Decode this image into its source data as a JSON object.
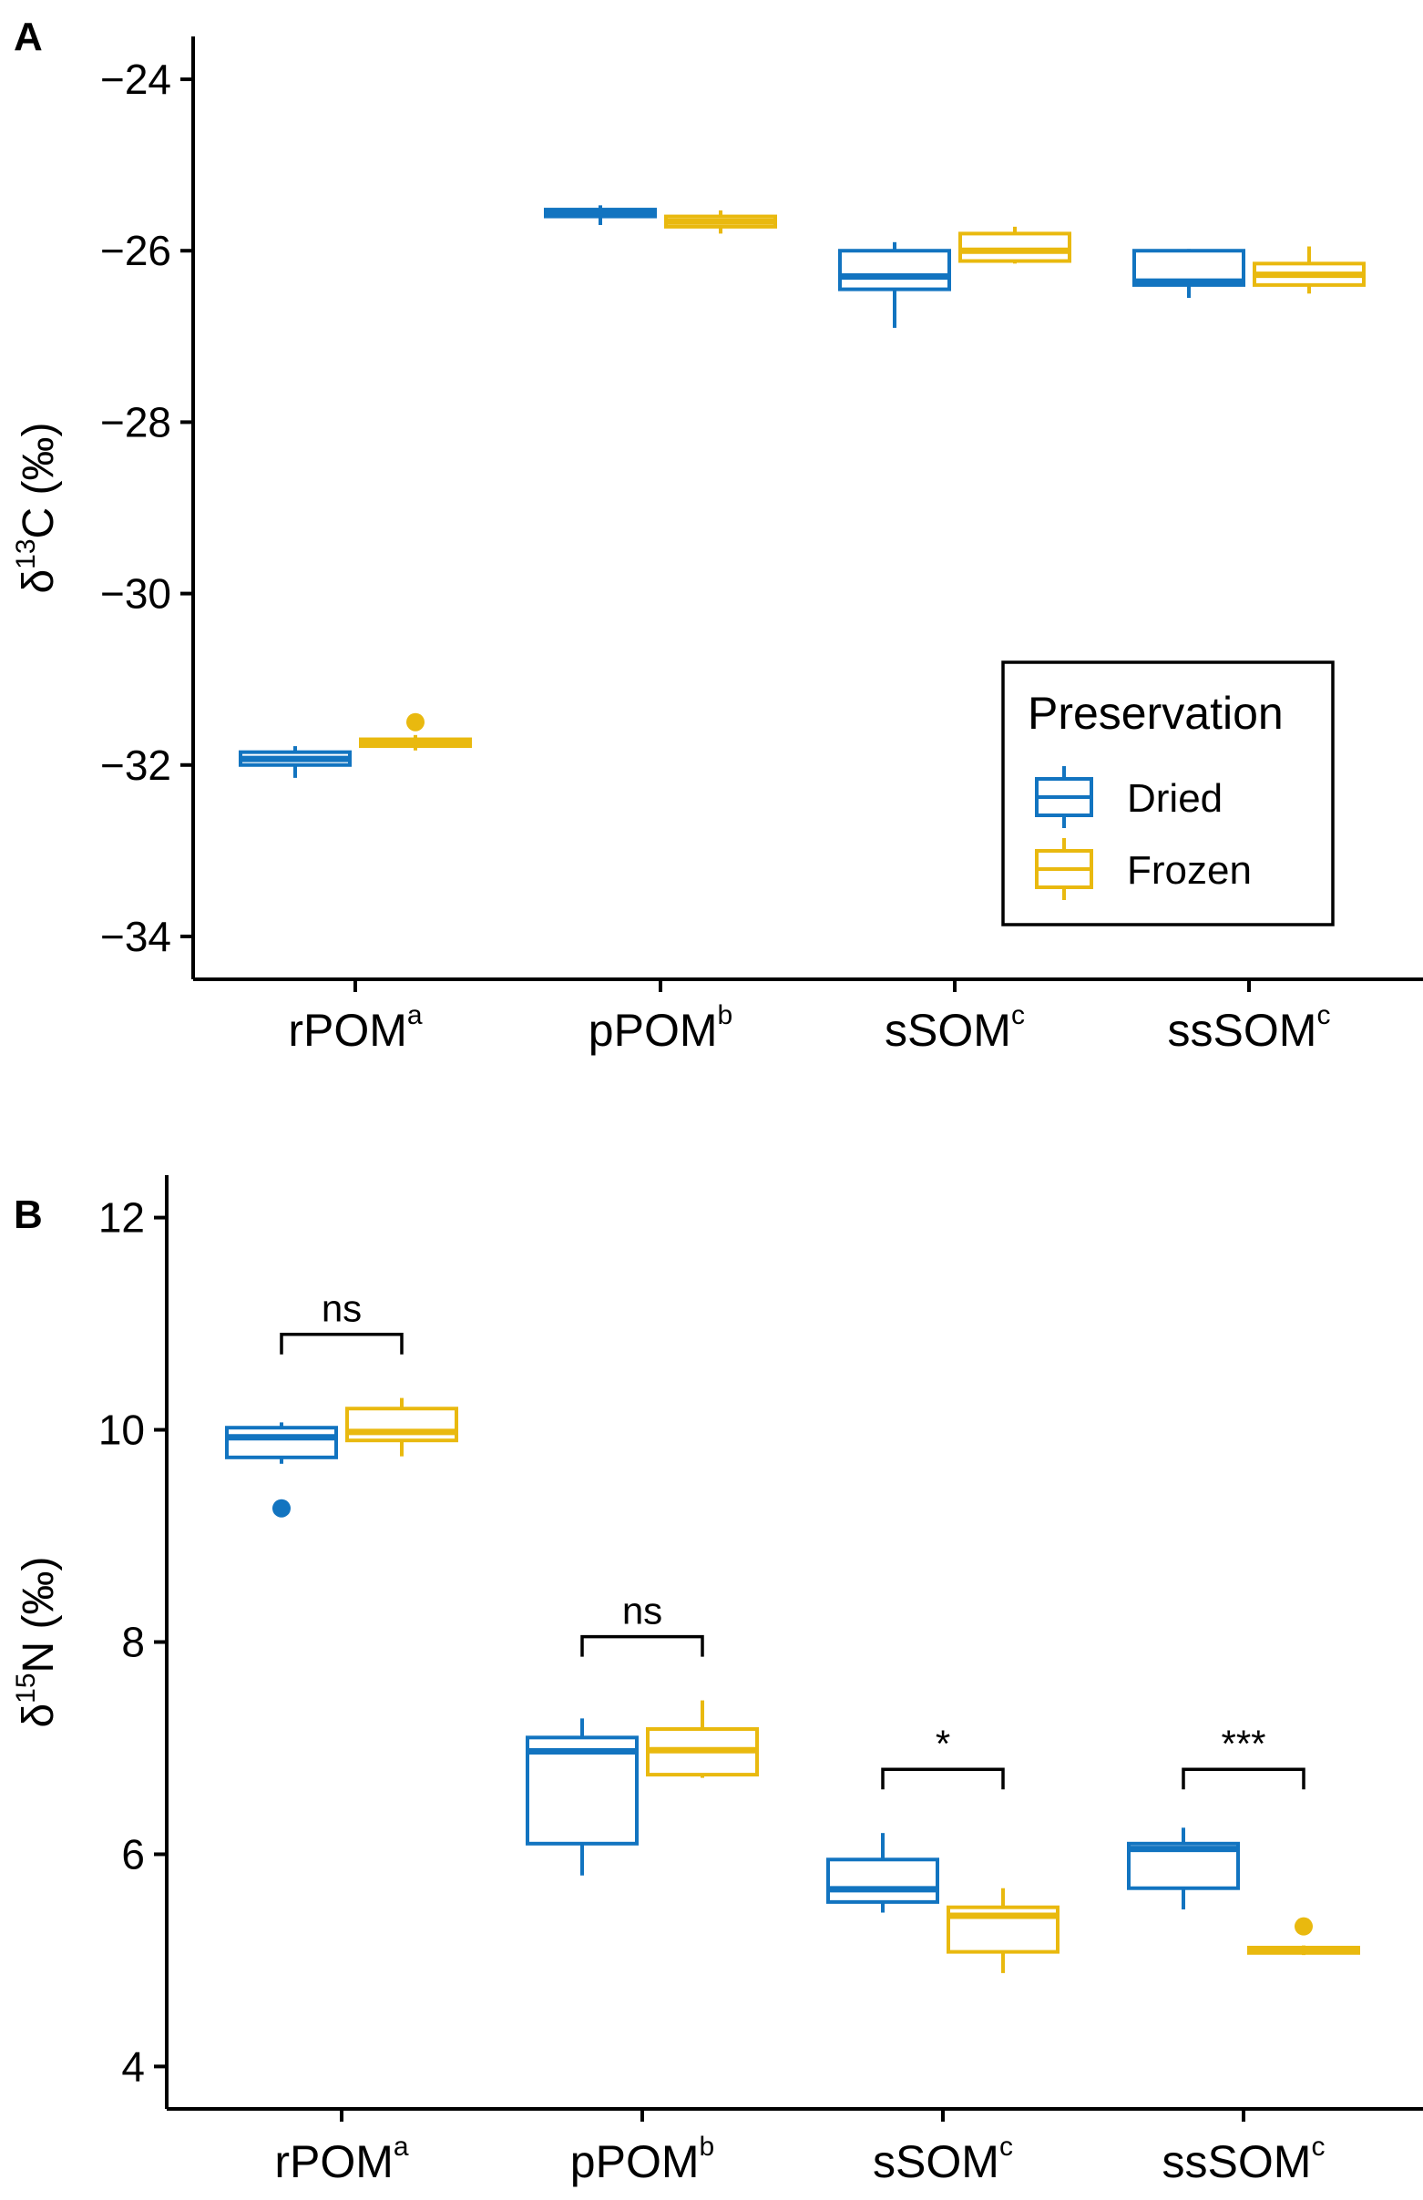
{
  "colors": {
    "dried": "#1274C0",
    "frozen": "#E9B90F",
    "axis": "#000000"
  },
  "legend": {
    "title": "Preservation",
    "items": [
      {
        "label": "Dried",
        "color": "#1274C0"
      },
      {
        "label": "Frozen",
        "color": "#E9B90F"
      }
    ]
  },
  "chart_data": [
    {
      "type": "boxplot",
      "panel_label": "A",
      "ylabel": {
        "prefix": "δ",
        "sup": "13",
        "rest": "C (‰)"
      },
      "ylim": [
        -34.5,
        -23.5
      ],
      "yticks": [
        -24,
        -26,
        -28,
        -30,
        -32,
        -34
      ],
      "ytick_labels": [
        "−24",
        "−26",
        "−28",
        "−30",
        "−32",
        "−34"
      ],
      "categories": [
        {
          "name": "rPOM",
          "sup": "a"
        },
        {
          "name": "pPOM",
          "sup": "b"
        },
        {
          "name": "sSOM",
          "sup": "c"
        },
        {
          "name": "ssSOM",
          "sup": "c"
        }
      ],
      "series": [
        {
          "name": "Dried",
          "boxes": [
            {
              "min": -32.15,
              "q1": -32.0,
              "median": -31.93,
              "q3": -31.85,
              "max": -31.78,
              "outliers": []
            },
            {
              "min": -25.7,
              "q1": -25.6,
              "median": -25.56,
              "q3": -25.52,
              "max": -25.47,
              "outliers": []
            },
            {
              "min": -26.9,
              "q1": -26.45,
              "median": -26.3,
              "q3": -26.0,
              "max": -25.9,
              "outliers": []
            },
            {
              "min": -26.55,
              "q1": -26.4,
              "median": -26.36,
              "q3": -26.0,
              "max": -25.98,
              "outliers": []
            }
          ]
        },
        {
          "name": "Frozen",
          "boxes": [
            {
              "min": -31.83,
              "q1": -31.78,
              "median": -31.74,
              "q3": -31.7,
              "max": -31.65,
              "outliers": [
                -31.5
              ]
            },
            {
              "min": -25.8,
              "q1": -25.72,
              "median": -25.66,
              "q3": -25.6,
              "max": -25.53,
              "outliers": []
            },
            {
              "min": -26.15,
              "q1": -26.12,
              "median": -26.0,
              "q3": -25.8,
              "max": -25.72,
              "outliers": []
            },
            {
              "min": -26.5,
              "q1": -26.4,
              "median": -26.28,
              "q3": -26.15,
              "max": -25.95,
              "outliers": []
            }
          ]
        }
      ]
    },
    {
      "type": "boxplot",
      "panel_label": "B",
      "ylabel": {
        "prefix": "δ",
        "sup": "15",
        "rest": "N (‰)"
      },
      "ylim": [
        3.6,
        12.4
      ],
      "yticks": [
        4,
        6,
        8,
        10,
        12
      ],
      "ytick_labels": [
        "4",
        "6",
        "8",
        "10",
        "12"
      ],
      "categories": [
        {
          "name": "rPOM",
          "sup": "a"
        },
        {
          "name": "pPOM",
          "sup": "b"
        },
        {
          "name": "sSOM",
          "sup": "c"
        },
        {
          "name": "ssSOM",
          "sup": "c"
        }
      ],
      "series": [
        {
          "name": "Dried",
          "boxes": [
            {
              "min": 9.68,
              "q1": 9.74,
              "median": 9.93,
              "q3": 10.02,
              "max": 10.07,
              "outliers": [
                9.26
              ]
            },
            {
              "min": 5.8,
              "q1": 6.1,
              "median": 6.97,
              "q3": 7.1,
              "max": 7.28,
              "outliers": []
            },
            {
              "min": 5.45,
              "q1": 5.55,
              "median": 5.67,
              "q3": 5.95,
              "max": 6.2,
              "outliers": []
            },
            {
              "min": 5.48,
              "q1": 5.68,
              "median": 6.05,
              "q3": 6.1,
              "max": 6.25,
              "outliers": []
            }
          ]
        },
        {
          "name": "Frozen",
          "boxes": [
            {
              "min": 9.75,
              "q1": 9.9,
              "median": 9.98,
              "q3": 10.2,
              "max": 10.3,
              "outliers": []
            },
            {
              "min": 6.72,
              "q1": 6.75,
              "median": 6.98,
              "q3": 7.18,
              "max": 7.45,
              "outliers": []
            },
            {
              "min": 4.88,
              "q1": 5.08,
              "median": 5.42,
              "q3": 5.5,
              "max": 5.68,
              "outliers": []
            },
            {
              "min": 5.05,
              "q1": 5.07,
              "median": 5.1,
              "q3": 5.12,
              "max": 5.14,
              "outliers": [
                5.32
              ]
            }
          ]
        }
      ],
      "significance": [
        {
          "category": 0,
          "label": "ns",
          "y": 10.9
        },
        {
          "category": 1,
          "label": "ns",
          "y": 8.05
        },
        {
          "category": 2,
          "label": "*",
          "y": 6.8
        },
        {
          "category": 3,
          "label": "***",
          "y": 6.8
        }
      ]
    }
  ]
}
